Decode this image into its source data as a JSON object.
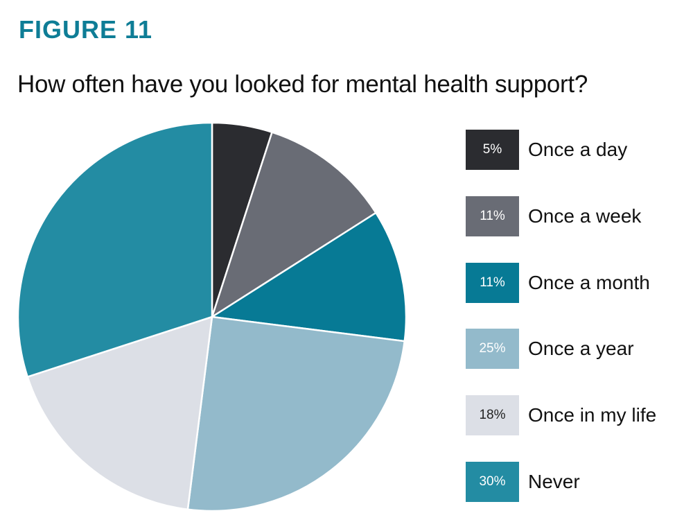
{
  "figure_label": "FIGURE 11",
  "chart_data": {
    "type": "pie",
    "title": "How often have you looked for mental health support?",
    "start": "top",
    "direction": "clockwise",
    "legend_position": "right",
    "slices": [
      {
        "label": "Once a day",
        "value": 5,
        "display": "5%",
        "color": "#2b2c30",
        "text_color": "#ffffff"
      },
      {
        "label": "Once a week",
        "value": 11,
        "display": "11%",
        "color": "#696c75",
        "text_color": "#ffffff"
      },
      {
        "label": "Once a month",
        "value": 11,
        "display": "11%",
        "color": "#077a95",
        "text_color": "#ffffff"
      },
      {
        "label": "Once a year",
        "value": 25,
        "display": "25%",
        "color": "#93bacb",
        "text_color": "#ffffff"
      },
      {
        "label": "Once in my life",
        "value": 18,
        "display": "18%",
        "color": "#dcdfe6",
        "text_color": "#222222"
      },
      {
        "label": "Never",
        "value": 30,
        "display": "30%",
        "color": "#238ca3",
        "text_color": "#ffffff"
      }
    ]
  }
}
